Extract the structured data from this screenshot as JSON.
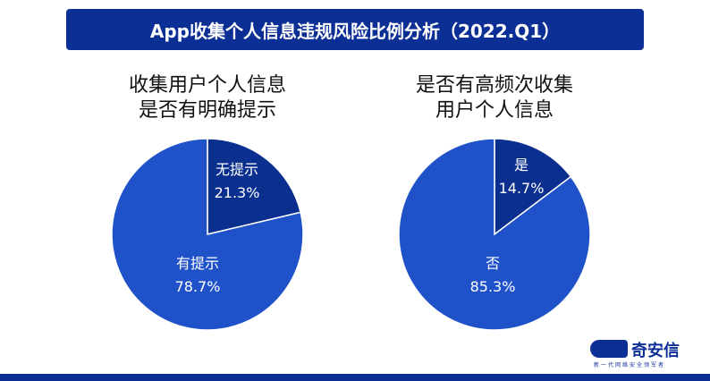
{
  "title": "App收集个人信息违规风险比例分析（2022.Q1）",
  "colors": {
    "dark": "#0b2f8f",
    "light": "#1f52c9",
    "title_bg": "#0b2f95"
  },
  "chart_data": [
    {
      "type": "pie",
      "title_lines": [
        "收集用户个人信息",
        "是否有明确提示"
      ],
      "slices": [
        {
          "label": "无提示",
          "value": 21.3,
          "value_label": "21.3%",
          "color": "#0b2f8f"
        },
        {
          "label": "有提示",
          "value": 78.7,
          "value_label": "78.7%",
          "color": "#1f52c9"
        }
      ]
    },
    {
      "type": "pie",
      "title_lines": [
        "是否有高频次收集",
        "用户个人信息"
      ],
      "slices": [
        {
          "label": "是",
          "value": 14.7,
          "value_label": "14.7%",
          "color": "#0b2f8f"
        },
        {
          "label": "否",
          "value": 85.3,
          "value_label": "85.3%",
          "color": "#1f52c9"
        }
      ]
    }
  ],
  "logo": {
    "name": "奇安信",
    "tagline": "新一代网络安全领军者"
  }
}
